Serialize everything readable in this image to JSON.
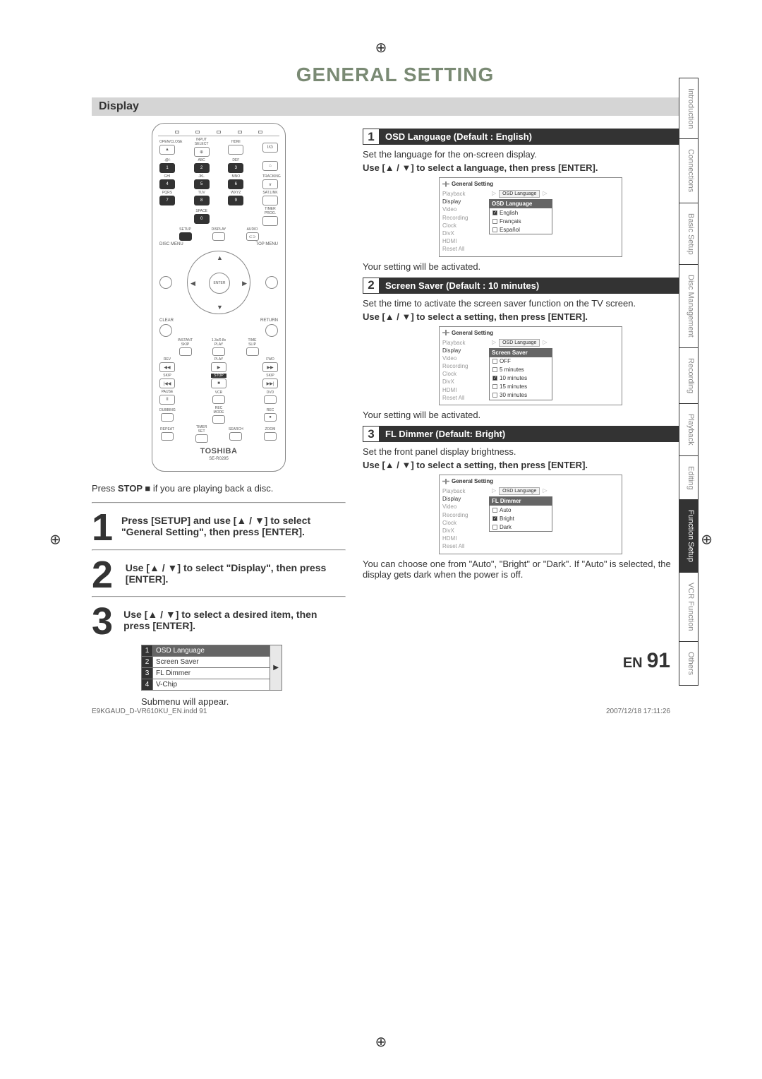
{
  "page_title": "GENERAL SETTING",
  "section_header": "Display",
  "remote": {
    "row1_labels": [
      "OPEN/CLOSE",
      "INPUT SELECT",
      "HDMI",
      ""
    ],
    "row1_btns": [
      "▲",
      "⊕",
      "",
      "I/⏻"
    ],
    "row2_labels": [
      ".@/:",
      "ABC",
      "DEF",
      ""
    ],
    "row2_btns": [
      "1",
      "2",
      "3",
      "⌂"
    ],
    "row3_labels": [
      "GHI",
      "JKL",
      "MNO",
      "TRACKING"
    ],
    "row3_btns": [
      "4",
      "5",
      "6",
      "∨"
    ],
    "row4_labels": [
      "PQRS",
      "TUV",
      "WXYZ",
      "SAT.LINK"
    ],
    "row4_btns": [
      "7",
      "8",
      "9",
      ""
    ],
    "row5_labels": [
      "",
      "SPACE",
      "",
      "TIMER PROG."
    ],
    "row5_btn": "0",
    "row6_labels": [
      "SETUP",
      "DISPLAY",
      "AUDIO"
    ],
    "menu_l": "DISC MENU",
    "menu_r": "TOP MENU",
    "enter": "ENTER",
    "clear": "CLEAR",
    "return": "RETURN",
    "trans_labels": [
      "INSTANT SKIP",
      "1.3x/0.8x PLAY",
      "TIME SLIP"
    ],
    "play_row1": [
      "REV",
      "PLAY",
      "FWD"
    ],
    "play_row1_sym": [
      "◀◀",
      "▶",
      "▶▶"
    ],
    "play_row2": [
      "SKIP",
      "STOP",
      "SKIP"
    ],
    "play_row2_sym": [
      "|◀◀",
      "■",
      "▶▶|"
    ],
    "play_row3": [
      "PAUSE",
      "VCR",
      "DVD"
    ],
    "play_row3_sym": [
      "II",
      "",
      ""
    ],
    "play_row4": [
      "DUBBING",
      "REC MODE",
      "REC"
    ],
    "play_row4_sym": [
      "",
      "",
      "●"
    ],
    "play_row5": [
      "REPEAT",
      "TIMER SET",
      "SEARCH",
      "ZOOM"
    ],
    "brand": "TOSHIBA",
    "model": "SE-R0295"
  },
  "pre_note_a": "Press ",
  "pre_note_b": "STOP ■",
  "pre_note_c": " if you are playing back a disc.",
  "left_steps": [
    {
      "n": "1",
      "text": "Press [SETUP] and use [▲ / ▼] to select \"General Setting\", then press [ENTER]."
    },
    {
      "n": "2",
      "text": "Use [▲ / ▼] to select \"Display\", then press [ENTER]."
    },
    {
      "n": "3",
      "text": "Use [▲ / ▼] to select a desired item, then press [ENTER]."
    }
  ],
  "submenu": {
    "rows": [
      {
        "n": "1",
        "label": "OSD Language",
        "active": true
      },
      {
        "n": "2",
        "label": "Screen Saver"
      },
      {
        "n": "3",
        "label": "FL Dimmer"
      },
      {
        "n": "4",
        "label": "V-Chip"
      }
    ],
    "after": "Submenu will appear."
  },
  "right_items": [
    {
      "n": "1",
      "title": "OSD Language (Default : English)",
      "desc": "Set the language for the on-screen display.",
      "instr": "Use [▲ / ▼] to select a language, then press [ENTER].",
      "osd": {
        "crumb": "OSD Language",
        "label": "OSD Language",
        "opts": [
          {
            "t": "English",
            "on": true
          },
          {
            "t": "Français"
          },
          {
            "t": "Español"
          }
        ]
      },
      "after": "Your setting will be activated."
    },
    {
      "n": "2",
      "title": "Screen Saver (Default : 10 minutes)",
      "desc": "Set the time to activate the screen saver function on the TV screen.",
      "instr": "Use [▲ / ▼] to select a setting, then press [ENTER].",
      "osd": {
        "crumb": "OSD Language",
        "label": "Screen Saver",
        "opts": [
          {
            "t": "OFF"
          },
          {
            "t": "5 minutes"
          },
          {
            "t": "10  minutes",
            "on": true
          },
          {
            "t": "15  minutes"
          },
          {
            "t": "30  minutes"
          }
        ]
      },
      "after": "Your setting will be activated."
    },
    {
      "n": "3",
      "title": "FL Dimmer (Default: Bright)",
      "desc": "Set the front panel display brightness.",
      "instr": "Use [▲ / ▼] to select a setting, then press [ENTER].",
      "osd": {
        "crumb": "OSD Language",
        "label": "FL Dimmer",
        "opts": [
          {
            "t": "Auto"
          },
          {
            "t": "Bright",
            "on": true
          },
          {
            "t": "Dark"
          }
        ]
      },
      "after": "You can choose one from \"Auto\", \"Bright\" or \"Dark\". If \"Auto\" is selected, the display gets dark when the power is off."
    }
  ],
  "osd_panel_title": "General Setting",
  "osd_side_items": [
    "Playback",
    "Display",
    "Video",
    "Recording",
    "Clock",
    "DivX",
    "HDMI",
    "Reset All"
  ],
  "side_tabs": [
    {
      "t": "Introduction"
    },
    {
      "t": "Connections"
    },
    {
      "t": "Basic Setup"
    },
    {
      "t": "Disc Management"
    },
    {
      "t": "Recording"
    },
    {
      "t": "Playback"
    },
    {
      "t": "Editing"
    },
    {
      "t": "Function Setup",
      "active": true
    },
    {
      "t": "VCR Function"
    },
    {
      "t": "Others"
    }
  ],
  "footer_lang": "EN",
  "footer_page": "91",
  "meta_left": "E9KGAUD_D-VR610KU_EN.indd   91",
  "meta_right": "2007/12/18   17:11:26"
}
